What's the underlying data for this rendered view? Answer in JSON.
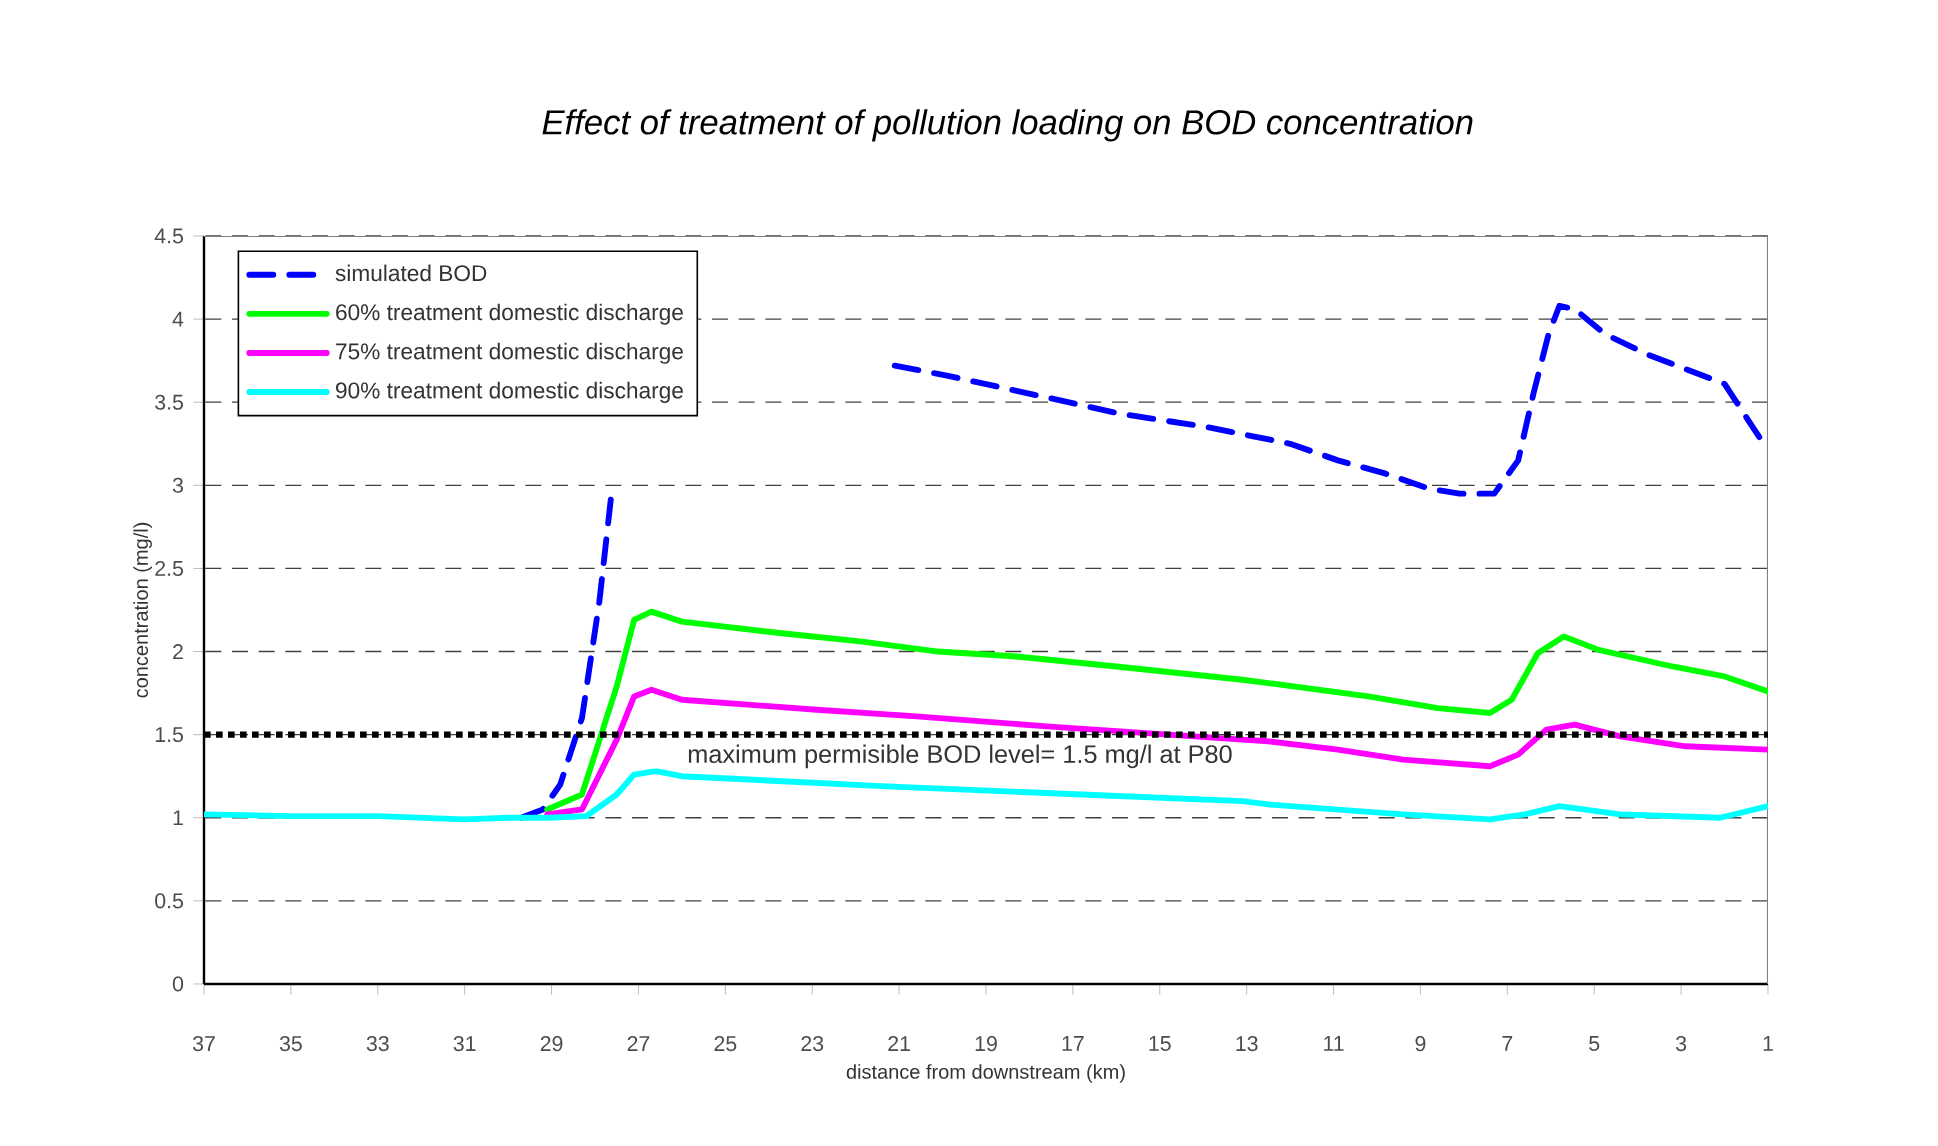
{
  "chart_data": {
    "type": "line",
    "title": "*Effect of treatment of pollution loading on BOD concentration*",
    "xlabel": "distance  from downstream (km)",
    "ylabel": "concentration (mg/l)",
    "xlim": [
      37,
      1
    ],
    "xticks": [
      37,
      35,
      33,
      31,
      29,
      27,
      25,
      23,
      21,
      19,
      17,
      15,
      13,
      11,
      9,
      7,
      5,
      3,
      1
    ],
    "ylim": [
      0,
      4.5
    ],
    "yticks": [
      0,
      0.5,
      1,
      1.5,
      2,
      2.5,
      3,
      3.5,
      4,
      4.5
    ],
    "grid": "y",
    "legend": "top left",
    "ref_lines": [
      {
        "axis": "y",
        "value": 1.5,
        "label": "maximum permisible BOD level= 1.5 mg/l at P80",
        "color": "#000000",
        "line_style": "dotted"
      }
    ],
    "series": [
      {
        "name": "simulated BOD",
        "color": "#0000ff",
        "line_style": "dashed",
        "x": [
          29.7,
          29.2,
          28.8,
          28.3,
          27.9,
          27.6,
          27.4,
          21.1,
          19.9,
          17.8,
          15.9,
          13.9,
          12.0,
          10.9,
          9.8,
          8.8,
          8.1,
          7.3,
          6.75,
          6.4,
          6.05,
          5.8,
          5.45,
          4.75,
          3.8,
          2.8,
          2.0,
          1.55,
          1
        ],
        "values": [
          1.0,
          1.05,
          1.2,
          1.6,
          2.3,
          3.0,
          null,
          3.72,
          3.66,
          3.54,
          3.43,
          3.35,
          3.25,
          3.15,
          3.07,
          2.98,
          2.95,
          2.95,
          3.15,
          3.55,
          3.91,
          4.08,
          4.06,
          3.91,
          3.79,
          3.69,
          3.61,
          3.43,
          3.21
        ]
      },
      {
        "name": "60% treatment domestic discharge",
        "color": "#00ff00",
        "line_style": "solid",
        "x": [
          29.1,
          28.3,
          27.5,
          27.1,
          26.7,
          26.0,
          23.7,
          21.85,
          20.1,
          18.3,
          16.0,
          13.1,
          12.5,
          10.2,
          8.6,
          7.4,
          6.9,
          6.3,
          5.7,
          4.9,
          3.2,
          2.0,
          1
        ],
        "values": [
          1.05,
          1.14,
          1.79,
          2.19,
          2.24,
          2.18,
          2.11,
          2.06,
          2.0,
          1.97,
          1.91,
          1.83,
          1.81,
          1.73,
          1.66,
          1.63,
          1.71,
          1.99,
          2.09,
          2.01,
          1.91,
          1.85,
          1.76
        ]
      },
      {
        "name": "75% treatment domestic discharge",
        "color": "#ff00ff",
        "line_style": "solid",
        "x": [
          29.1,
          28.3,
          27.5,
          27.1,
          26.7,
          26.0,
          22.9,
          20.6,
          17.6,
          13.1,
          12.5,
          10.9,
          9.4,
          7.4,
          6.75,
          6.1,
          5.45,
          4.4,
          2.9,
          1
        ],
        "values": [
          1.02,
          1.05,
          1.47,
          1.73,
          1.77,
          1.71,
          1.65,
          1.61,
          1.55,
          1.47,
          1.46,
          1.41,
          1.35,
          1.31,
          1.38,
          1.53,
          1.56,
          1.49,
          1.43,
          1.41
        ]
      },
      {
        "name": "90% treatment domestic discharge",
        "color": "#00ffff",
        "line_style": "solid",
        "x": [
          37,
          35,
          33,
          31,
          30,
          29.1,
          28.2,
          27.5,
          27.1,
          26.6,
          26.0,
          21.4,
          16.8,
          13.1,
          12.5,
          9.4,
          7.4,
          6.6,
          5.8,
          4.4,
          2.1,
          1
        ],
        "values": [
          1.02,
          1.01,
          1.01,
          0.99,
          1.0,
          1.0,
          1.01,
          1.14,
          1.26,
          1.28,
          1.25,
          1.19,
          1.14,
          1.1,
          1.08,
          1.02,
          0.99,
          1.02,
          1.07,
          1.02,
          1.0,
          1.07
        ]
      }
    ]
  }
}
